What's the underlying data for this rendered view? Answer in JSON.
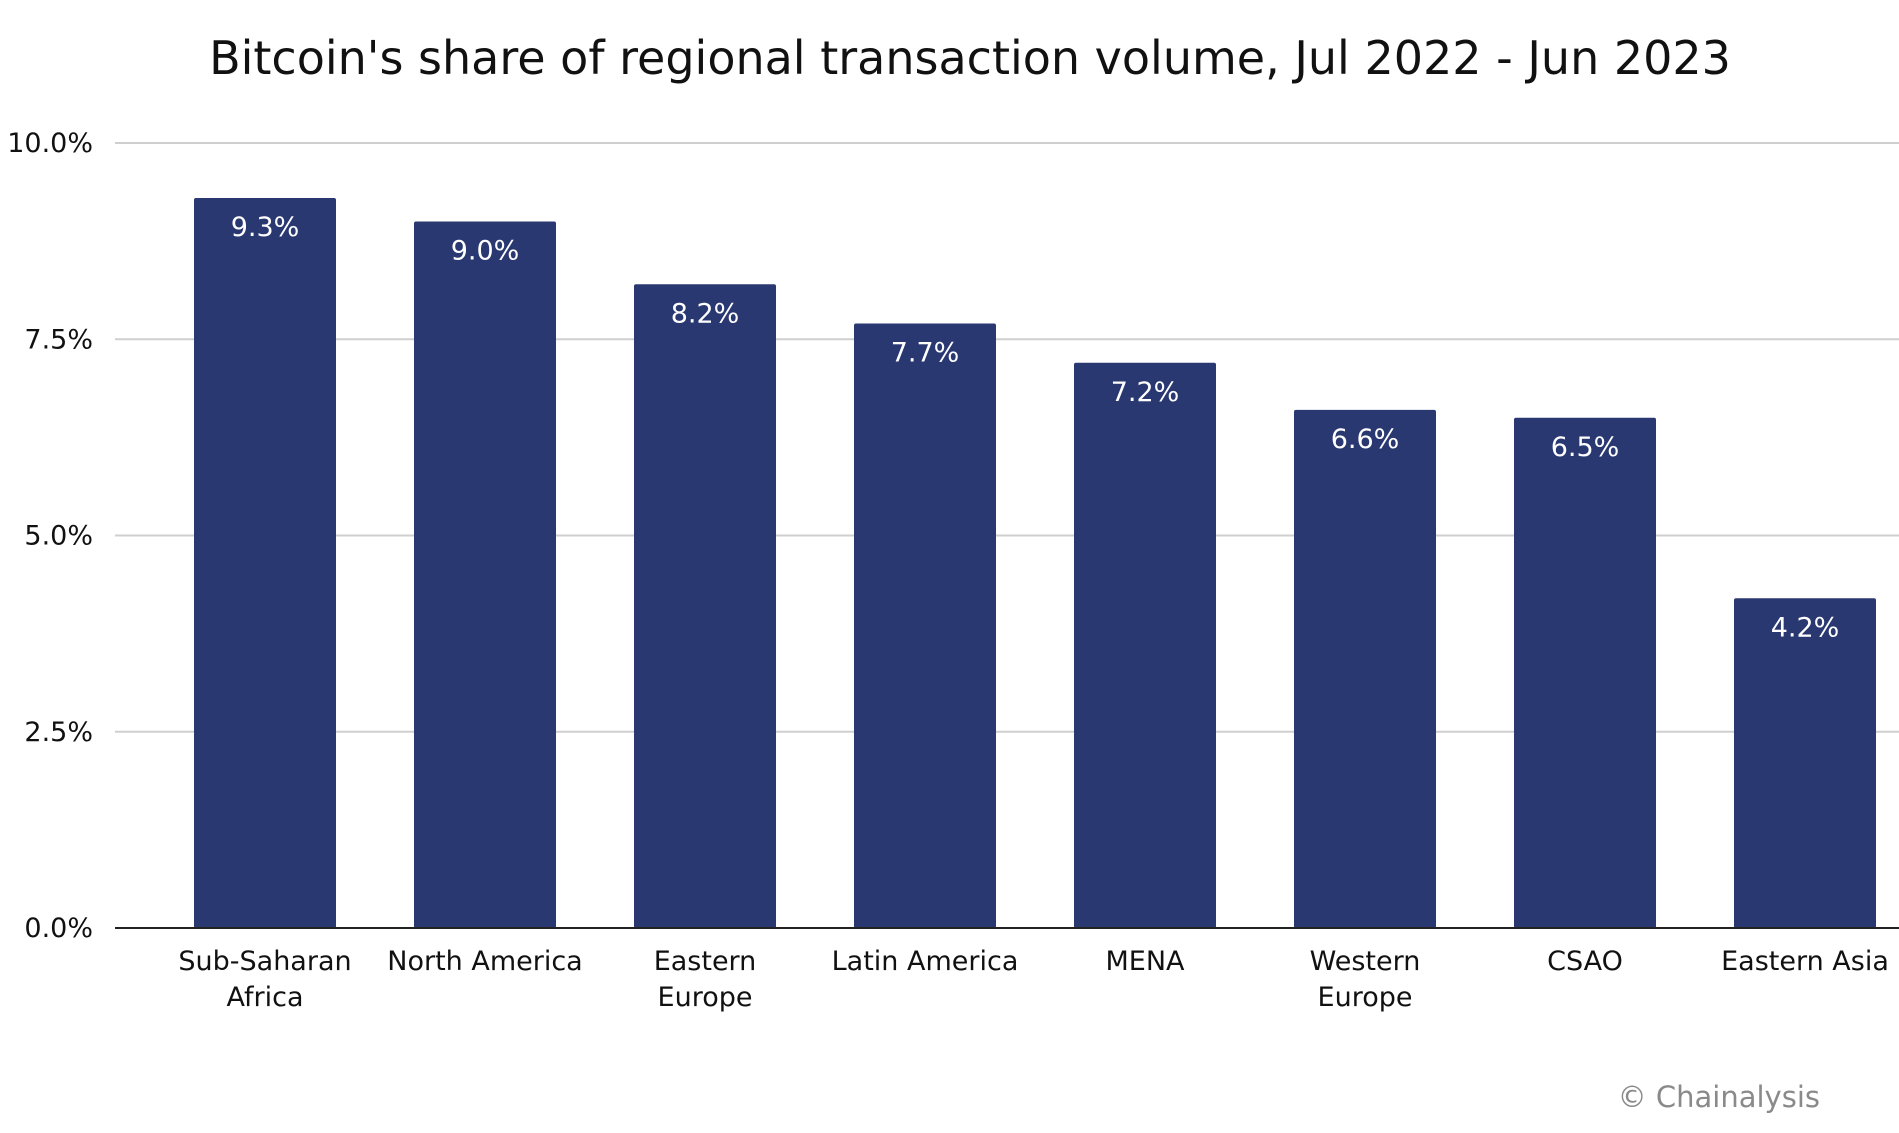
{
  "chart_data": {
    "type": "bar",
    "title": "Bitcoin's share of regional transaction volume, Jul 2022 - Jun 2023",
    "categories": [
      [
        "Sub-Saharan",
        "Africa"
      ],
      [
        "North America"
      ],
      [
        "Eastern",
        "Europe"
      ],
      [
        "Latin America"
      ],
      [
        "MENA"
      ],
      [
        "Western",
        "Europe"
      ],
      [
        "CSAO"
      ],
      [
        "Eastern Asia"
      ]
    ],
    "values": [
      9.3,
      9.0,
      8.2,
      7.7,
      7.2,
      6.6,
      6.5,
      4.2
    ],
    "data_labels": [
      "9.3%",
      "9.0%",
      "8.2%",
      "7.7%",
      "7.2%",
      "6.6%",
      "6.5%",
      "4.2%"
    ],
    "xlabel": "",
    "ylabel": "",
    "ylim": [
      0,
      10
    ],
    "yticks": [
      0,
      2.5,
      5,
      7.5,
      10
    ],
    "ytick_labels": [
      "0.0%",
      "2.5%",
      "5.0%",
      "7.5%",
      "10.0%"
    ],
    "grid": true,
    "legend": "none",
    "bar_color": "#2a3872",
    "grid_color": "#cfcfcf"
  },
  "credit": "© Chainalysis"
}
